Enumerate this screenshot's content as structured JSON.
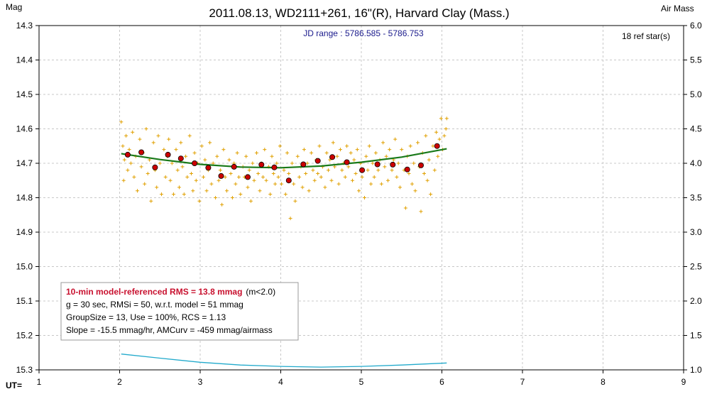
{
  "chart_data": {
    "type": "scatter",
    "title": "2011.08.13, WD2111+261, 16\"(R), Harvard Clay (Mass.)",
    "ylabel_left": "Mag",
    "ylabel_right": "Air Mass",
    "xlabel": "UT=",
    "jd_range_text": "JD range : 5786.585 - 5786.753",
    "ref_stars_text": "18 ref star(s)",
    "xlim": [
      1,
      9
    ],
    "ylim_left": [
      14.3,
      15.3
    ],
    "ylim_left_inverted": true,
    "ylim_right": [
      1.0,
      6.0
    ],
    "x_ticks": [
      "1",
      "2",
      "3",
      "4",
      "5",
      "6",
      "7",
      "8",
      "9"
    ],
    "y_ticks_left": [
      "14.3",
      "14.4",
      "14.5",
      "14.6",
      "14.7",
      "14.8",
      "14.9",
      "15.0",
      "15.1",
      "15.2",
      "15.3"
    ],
    "y_ticks_right": [
      "6.0",
      "5.5",
      "5.0",
      "4.5",
      "4.0",
      "3.5",
      "3.0",
      "2.5",
      "2.0",
      "1.5",
      "1.0"
    ],
    "grid": true,
    "series": [
      {
        "kind": "raw",
        "color": "#e0a000",
        "marker": "+",
        "points": [
          [
            2.02,
            14.58
          ],
          [
            2.04,
            14.65
          ],
          [
            2.05,
            14.75
          ],
          [
            2.06,
            14.69
          ],
          [
            2.08,
            14.62
          ],
          [
            2.1,
            14.72
          ],
          [
            2.12,
            14.66
          ],
          [
            2.14,
            14.7
          ],
          [
            2.16,
            14.61
          ],
          [
            2.18,
            14.74
          ],
          [
            2.2,
            14.68
          ],
          [
            2.22,
            14.78
          ],
          [
            2.25,
            14.63
          ],
          [
            2.27,
            14.71
          ],
          [
            2.29,
            14.67
          ],
          [
            2.31,
            14.76
          ],
          [
            2.33,
            14.6
          ],
          [
            2.35,
            14.73
          ],
          [
            2.37,
            14.69
          ],
          [
            2.39,
            14.81
          ],
          [
            2.42,
            14.64
          ],
          [
            2.44,
            14.72
          ],
          [
            2.46,
            14.77
          ],
          [
            2.48,
            14.62
          ],
          [
            2.5,
            14.7
          ],
          [
            2.52,
            14.79
          ],
          [
            2.55,
            14.66
          ],
          [
            2.57,
            14.74
          ],
          [
            2.59,
            14.68
          ],
          [
            2.61,
            14.63
          ],
          [
            2.63,
            14.75
          ],
          [
            2.65,
            14.7
          ],
          [
            2.67,
            14.79
          ],
          [
            2.7,
            14.66
          ],
          [
            2.72,
            14.72
          ],
          [
            2.74,
            14.77
          ],
          [
            2.76,
            14.64
          ],
          [
            2.78,
            14.71
          ],
          [
            2.8,
            14.79
          ],
          [
            2.82,
            14.68
          ],
          [
            2.84,
            14.74
          ],
          [
            2.87,
            14.62
          ],
          [
            2.89,
            14.73
          ],
          [
            2.91,
            14.78
          ],
          [
            2.93,
            14.67
          ],
          [
            2.95,
            14.75
          ],
          [
            2.97,
            14.7
          ],
          [
            2.99,
            14.81
          ],
          [
            3.02,
            14.65
          ],
          [
            3.04,
            14.74
          ],
          [
            3.06,
            14.69
          ],
          [
            3.08,
            14.78
          ],
          [
            3.1,
            14.72
          ],
          [
            3.12,
            14.64
          ],
          [
            3.14,
            14.76
          ],
          [
            3.16,
            14.7
          ],
          [
            3.19,
            14.8
          ],
          [
            3.21,
            14.68
          ],
          [
            3.23,
            14.75
          ],
          [
            3.25,
            14.72
          ],
          [
            3.27,
            14.82
          ],
          [
            3.29,
            14.66
          ],
          [
            3.31,
            14.74
          ],
          [
            3.33,
            14.78
          ],
          [
            3.36,
            14.69
          ],
          [
            3.38,
            14.73
          ],
          [
            3.4,
            14.8
          ],
          [
            3.42,
            14.7
          ],
          [
            3.44,
            14.76
          ],
          [
            3.46,
            14.67
          ],
          [
            3.48,
            14.74
          ],
          [
            3.5,
            14.79
          ],
          [
            3.53,
            14.71
          ],
          [
            3.55,
            14.74
          ],
          [
            3.57,
            14.68
          ],
          [
            3.59,
            14.77
          ],
          [
            3.61,
            14.72
          ],
          [
            3.63,
            14.81
          ],
          [
            3.65,
            14.7
          ],
          [
            3.67,
            14.75
          ],
          [
            3.7,
            14.67
          ],
          [
            3.72,
            14.73
          ],
          [
            3.74,
            14.78
          ],
          [
            3.76,
            14.7
          ],
          [
            3.78,
            14.74
          ],
          [
            3.8,
            14.66
          ],
          [
            3.82,
            14.75
          ],
          [
            3.85,
            14.71
          ],
          [
            3.87,
            14.79
          ],
          [
            3.89,
            14.68
          ],
          [
            3.91,
            14.73
          ],
          [
            3.93,
            14.76
          ],
          [
            3.95,
            14.7
          ],
          [
            3.97,
            14.74
          ],
          [
            3.99,
            14.65
          ],
          [
            4.01,
            14.76
          ],
          [
            4.04,
            14.72
          ],
          [
            4.06,
            14.79
          ],
          [
            4.08,
            14.67
          ],
          [
            4.1,
            14.73
          ],
          [
            4.12,
            14.86
          ],
          [
            4.14,
            14.7
          ],
          [
            4.16,
            14.76
          ],
          [
            4.18,
            14.81
          ],
          [
            4.21,
            14.68
          ],
          [
            4.23,
            14.74
          ],
          [
            4.25,
            14.71
          ],
          [
            4.27,
            14.77
          ],
          [
            4.29,
            14.66
          ],
          [
            4.31,
            14.73
          ],
          [
            4.33,
            14.7
          ],
          [
            4.35,
            14.78
          ],
          [
            4.38,
            14.67
          ],
          [
            4.4,
            14.72
          ],
          [
            4.42,
            14.75
          ],
          [
            4.44,
            14.69
          ],
          [
            4.46,
            14.73
          ],
          [
            4.48,
            14.65
          ],
          [
            4.5,
            14.74
          ],
          [
            4.52,
            14.71
          ],
          [
            4.55,
            14.77
          ],
          [
            4.57,
            14.67
          ],
          [
            4.59,
            14.72
          ],
          [
            4.61,
            14.69
          ],
          [
            4.63,
            14.75
          ],
          [
            4.65,
            14.64
          ],
          [
            4.67,
            14.71
          ],
          [
            4.7,
            14.68
          ],
          [
            4.72,
            14.76
          ],
          [
            4.74,
            14.66
          ],
          [
            4.76,
            14.72
          ],
          [
            4.78,
            14.7
          ],
          [
            4.8,
            14.74
          ],
          [
            4.82,
            14.65
          ],
          [
            4.84,
            14.71
          ],
          [
            4.87,
            14.67
          ],
          [
            4.89,
            14.75
          ],
          [
            4.91,
            14.69
          ],
          [
            4.93,
            14.73
          ],
          [
            4.95,
            14.66
          ],
          [
            4.97,
            14.78
          ],
          [
            4.99,
            14.7
          ],
          [
            5.01,
            14.74
          ],
          [
            5.04,
            14.8
          ],
          [
            5.06,
            14.68
          ],
          [
            5.08,
            14.72
          ],
          [
            5.1,
            14.65
          ],
          [
            5.12,
            14.76
          ],
          [
            5.14,
            14.7
          ],
          [
            5.16,
            14.74
          ],
          [
            5.18,
            14.67
          ],
          [
            5.21,
            14.72
          ],
          [
            5.23,
            14.69
          ],
          [
            5.25,
            14.76
          ],
          [
            5.27,
            14.64
          ],
          [
            5.29,
            14.71
          ],
          [
            5.31,
            14.68
          ],
          [
            5.33,
            14.75
          ],
          [
            5.35,
            14.66
          ],
          [
            5.38,
            14.72
          ],
          [
            5.4,
            14.69
          ],
          [
            5.42,
            14.63
          ],
          [
            5.44,
            14.74
          ],
          [
            5.46,
            14.7
          ],
          [
            5.48,
            14.77
          ],
          [
            5.5,
            14.66
          ],
          [
            5.53,
            14.72
          ],
          [
            5.55,
            14.83
          ],
          [
            5.57,
            14.68
          ],
          [
            5.59,
            14.73
          ],
          [
            5.61,
            14.65
          ],
          [
            5.63,
            14.76
          ],
          [
            5.65,
            14.7
          ],
          [
            5.67,
            14.78
          ],
          [
            5.7,
            14.64
          ],
          [
            5.72,
            14.71
          ],
          [
            5.74,
            14.84
          ],
          [
            5.76,
            14.67
          ],
          [
            5.78,
            14.73
          ],
          [
            5.8,
            14.62
          ],
          [
            5.82,
            14.75
          ],
          [
            5.84,
            14.69
          ],
          [
            5.86,
            14.79
          ],
          [
            5.89,
            14.65
          ],
          [
            5.91,
            14.72
          ],
          [
            5.93,
            14.61
          ],
          [
            5.95,
            14.68
          ],
          [
            5.97,
            14.63
          ],
          [
            5.99,
            14.57
          ],
          [
            6.01,
            14.66
          ],
          [
            6.03,
            14.62
          ],
          [
            6.05,
            14.6
          ],
          [
            6.06,
            14.57
          ]
        ]
      },
      {
        "kind": "binned",
        "color": "#cc0000",
        "marker": "circle",
        "points": [
          [
            2.1,
            14.675
          ],
          [
            2.27,
            14.668
          ],
          [
            2.44,
            14.712
          ],
          [
            2.6,
            14.675
          ],
          [
            2.76,
            14.686
          ],
          [
            2.93,
            14.7
          ],
          [
            3.1,
            14.713
          ],
          [
            3.26,
            14.737
          ],
          [
            3.42,
            14.71
          ],
          [
            3.59,
            14.74
          ],
          [
            3.76,
            14.704
          ],
          [
            3.92,
            14.712
          ],
          [
            4.1,
            14.75
          ],
          [
            4.28,
            14.703
          ],
          [
            4.46,
            14.693
          ],
          [
            4.64,
            14.682
          ],
          [
            4.82,
            14.697
          ],
          [
            5.01,
            14.72
          ],
          [
            5.2,
            14.703
          ],
          [
            5.39,
            14.704
          ],
          [
            5.57,
            14.718
          ],
          [
            5.74,
            14.706
          ],
          [
            5.94,
            14.65
          ]
        ]
      },
      {
        "kind": "model",
        "color": "#1a7a1a",
        "points": [
          [
            2.02,
            14.672
          ],
          [
            2.5,
            14.689
          ],
          [
            3.0,
            14.703
          ],
          [
            3.5,
            14.711
          ],
          [
            4.0,
            14.713
          ],
          [
            4.5,
            14.708
          ],
          [
            5.0,
            14.697
          ],
          [
            5.5,
            14.682
          ],
          [
            6.06,
            14.658
          ]
        ]
      },
      {
        "kind": "airmass",
        "axis": "right",
        "color": "#22aacc",
        "points": [
          [
            2.02,
            1.23
          ],
          [
            2.5,
            1.17
          ],
          [
            3.0,
            1.11
          ],
          [
            3.5,
            1.07
          ],
          [
            4.0,
            1.05
          ],
          [
            4.5,
            1.04
          ],
          [
            5.0,
            1.05
          ],
          [
            5.5,
            1.07
          ],
          [
            6.06,
            1.1
          ]
        ]
      }
    ],
    "info_box": {
      "line1_bold": "10-min model-referenced RMS = 13.8 mmag",
      "line1_rest": "(m<2.0)",
      "line2": "g = 30 sec, RMSi = 50, w.r.t. model = 51 mmag",
      "line3": "GroupSize = 13, Use = 100%, RCS = 1.13",
      "line4": "Slope = -15.5 mmag/hr, AMCurv = -459 mmag/airmass"
    }
  }
}
